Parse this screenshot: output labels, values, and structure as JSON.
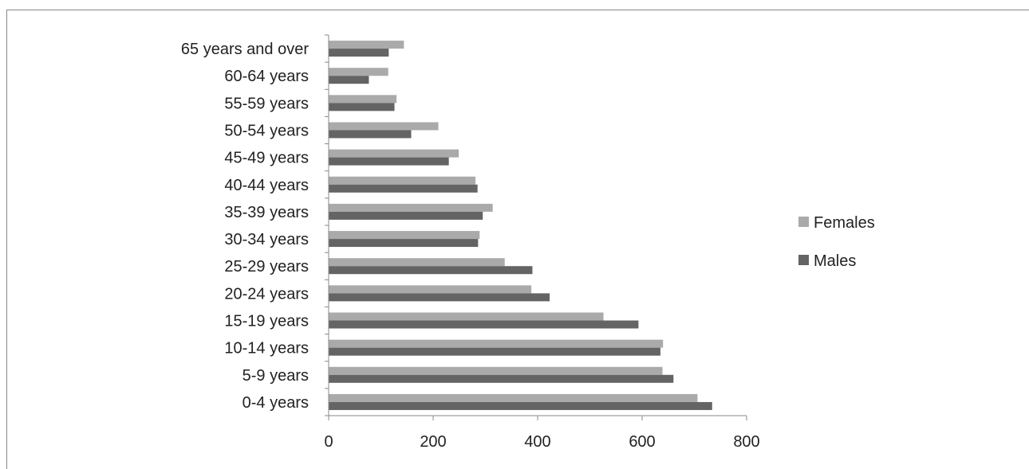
{
  "chart_data": {
    "type": "bar",
    "orientation": "horizontal",
    "categories": [
      "0-4 years",
      "5-9 years ",
      "10-14 years",
      "15-19 years",
      "20-24 years",
      "25-29 years",
      "30-34 years",
      "35-39 years",
      "40-44 years",
      "45-49 years ",
      "50-54 years",
      "55-59 years",
      "60-64 years",
      "65 years and over"
    ],
    "series": [
      {
        "name": "Females",
        "color": "#aaaaaa",
        "values": [
          706,
          639,
          640,
          526,
          388,
          337,
          289,
          314,
          281,
          249,
          210,
          130,
          114,
          144
        ]
      },
      {
        "name": "Males",
        "color": "#646464",
        "values": [
          734,
          660,
          635,
          593,
          423,
          390,
          286,
          295,
          285,
          230,
          158,
          126,
          77,
          115
        ]
      }
    ],
    "xlim": [
      0,
      800
    ],
    "x_ticks": [
      "0",
      "200",
      "400",
      "600",
      "800"
    ],
    "legend_position": "right",
    "grid": false
  }
}
